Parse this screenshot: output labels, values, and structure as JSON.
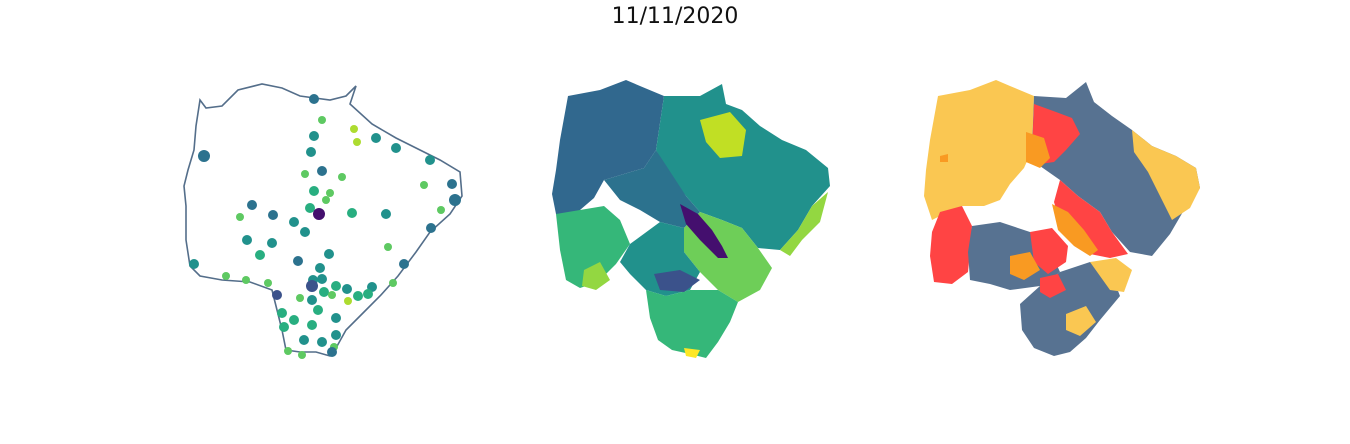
{
  "figure": {
    "title": "11/11/2020"
  },
  "panels": [
    {
      "kind": "points-on-outline",
      "outline_color": "#546e8a",
      "point_colors": [
        "#440f6e",
        "#3b528b",
        "#2c728e",
        "#21918c",
        "#28ae80",
        "#5ec962",
        "#addc30"
      ]
    },
    {
      "kind": "choropleth",
      "palette": [
        "#440f6e",
        "#31688e",
        "#21918c",
        "#35b779",
        "#6ece58",
        "#93d741",
        "#c1df24",
        "#fde725"
      ]
    },
    {
      "kind": "categorical-choropleth",
      "palette": [
        "#fac752",
        "#ff4444",
        "#f99a22",
        "#577291"
      ]
    }
  ]
}
